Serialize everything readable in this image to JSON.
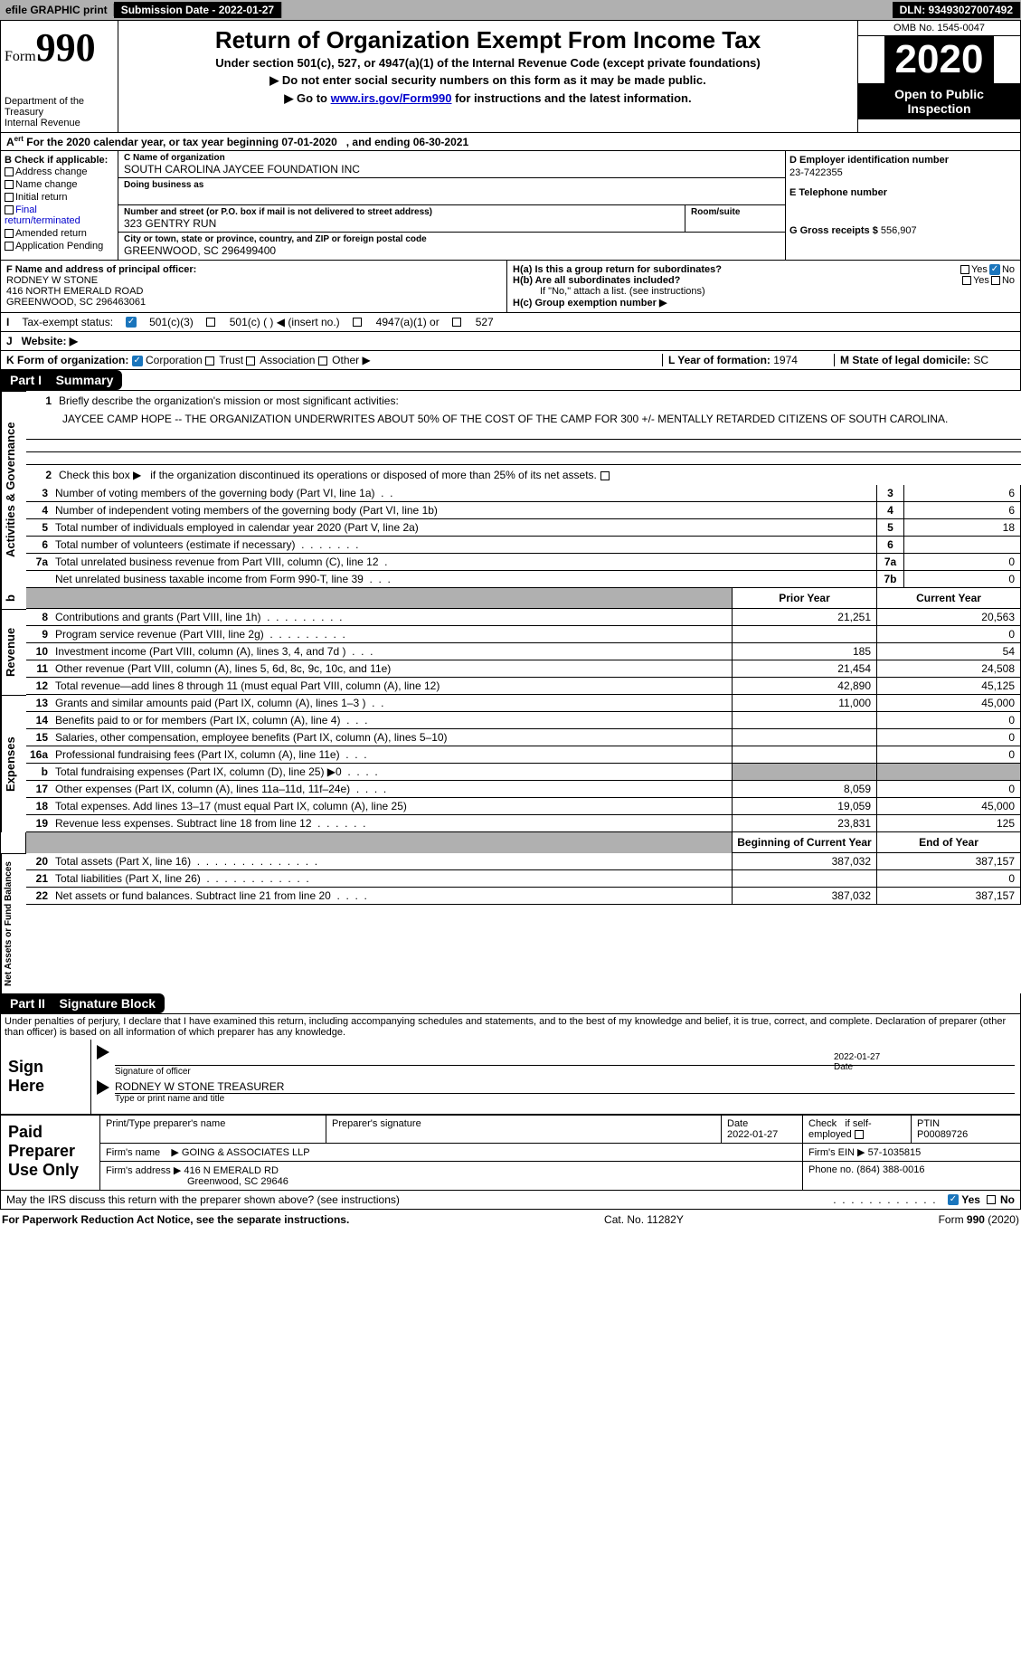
{
  "topbar": {
    "efile": "efile GRAPHIC print",
    "btn1": "Submission Date - 2022-01-27",
    "dln": "DLN: 93493027007492"
  },
  "header": {
    "form_label": "Form",
    "form_num": "990",
    "dept": "Department of the Treasury",
    "irs": "Internal Revenue",
    "title": "Return of Organization Exempt From Income Tax",
    "sub1": "Under section 501(c), 527, or 4947(a)(1) of the Internal Revenue Code (except private foundations)",
    "sub2_pre": "▶ Do not enter social security numbers on this form as it may be made public.",
    "sub3_pre": "▶ Go to ",
    "sub3_link": "www.irs.gov/Form990",
    "sub3_post": " for instructions and the latest information.",
    "omb": "OMB No. 1545-0047",
    "year": "2020",
    "open": "Open to Public Inspection"
  },
  "cal_year": "For the 2020 calendar year, or tax year beginning 07-01-2020   , and ending 06-30-2021",
  "boxB": {
    "label": "B Check if applicable:",
    "opts": [
      "Address change",
      "Name change",
      "Initial return",
      "Final return/terminated",
      "Amended return",
      "Application Pending"
    ]
  },
  "boxC": {
    "label_name": "C Name of organization",
    "org_name": "SOUTH CAROLINA JAYCEE FOUNDATION INC",
    "dba_label": "Doing business as",
    "street_label": "Number and street (or P.O. box if mail is not delivered to street address)",
    "room_label": "Room/suite",
    "street": "323 GENTRY RUN",
    "city_label": "City or town, state or province, country, and ZIP or foreign postal code",
    "city": "GREENWOOD, SC  296499400"
  },
  "boxD": {
    "label": "D Employer identification number",
    "ein": "23-7422355"
  },
  "boxE": {
    "label": "E Telephone number"
  },
  "boxG": {
    "label": "G Gross receipts $ ",
    "val": "556,907"
  },
  "boxF": {
    "label": "F Name and address of principal officer:",
    "name": "RODNEY W STONE",
    "addr1": "416 NORTH EMERALD ROAD",
    "addr2": "GREENWOOD, SC  296463061"
  },
  "boxH": {
    "a": "H(a) Is this a group return for subordinates?",
    "b": "H(b) Are all subordinates included?",
    "c_note": "If \"No,\" attach a list. (see instructions)",
    "c": "H(c) Group exemption number ▶"
  },
  "boxI": {
    "label": "Tax-exempt status:",
    "opts": [
      "501(c)(3)",
      "501(c) (  ) ◀ (insert no.)",
      "4947(a)(1) or",
      "527"
    ]
  },
  "boxJ": {
    "label": "J   Website: ▶"
  },
  "boxK": {
    "label": "K Form of organization:",
    "opts": [
      "Corporation",
      "Trust",
      "Association",
      "Other ▶"
    ]
  },
  "boxL": {
    "label": "L Year of formation: ",
    "val": "1974"
  },
  "boxM": {
    "label": "M State of legal domicile: ",
    "val": "SC"
  },
  "part1": {
    "header": "Part I    Summary",
    "line1_label": "Briefly describe the organization's mission or most significant activities:",
    "mission": "JAYCEE CAMP HOPE -- THE ORGANIZATION UNDERWRITES ABOUT 50% OF THE COST OF THE CAMP FOR 300 +/- MENTALLY RETARDED CITIZENS OF SOUTH CAROLINA.",
    "line2": "Check this box ▶   if the organization discontinued its operations or disposed of more than 25% of its net assets.",
    "rows_gov": [
      {
        "n": "3",
        "d": "Number of voting members of the governing body (Part VI, line 1a)",
        "box": "3",
        "v": "6"
      },
      {
        "n": "4",
        "d": "Number of independent voting members of the governing body (Part VI, line 1b)",
        "box": "4",
        "v": "6"
      },
      {
        "n": "5",
        "d": "Total number of individuals employed in calendar year 2020 (Part V, line 2a)",
        "box": "5",
        "v": "18"
      },
      {
        "n": "6",
        "d": "Total number of volunteers (estimate if necessary)",
        "box": "6",
        "v": ""
      },
      {
        "n": "7a",
        "d": "Total unrelated business revenue from Part VIII, column (C), line 12",
        "box": "7a",
        "v": "0"
      },
      {
        "n": "",
        "d": "Net unrelated business taxable income from Form 990-T, line 39",
        "box": "7b",
        "v": "0"
      }
    ],
    "prior_year": "Prior Year",
    "cur_year": "Current Year",
    "revenue_rows": [
      {
        "n": "8",
        "d": "Contributions and grants (Part VIII, line 1h)",
        "py": "21,251",
        "cy": "20,563"
      },
      {
        "n": "9",
        "d": "Program service revenue (Part VIII, line 2g)",
        "py": "",
        "cy": "0"
      },
      {
        "n": "10",
        "d": "Investment income (Part VIII, column (A), lines 3, 4, and 7d )",
        "py": "185",
        "cy": "54"
      },
      {
        "n": "11",
        "d": "Other revenue (Part VIII, column (A), lines 5, 6d, 8c, 9c, 10c, and 11e)",
        "py": "21,454",
        "cy": "24,508"
      },
      {
        "n": "12",
        "d": "Total revenue—add lines 8 through 11 (must equal Part VIII, column (A), line 12)",
        "py": "42,890",
        "cy": "45,125"
      }
    ],
    "expense_rows": [
      {
        "n": "13",
        "d": "Grants and similar amounts paid (Part IX, column (A), lines 1–3 )",
        "py": "11,000",
        "cy": "45,000"
      },
      {
        "n": "14",
        "d": "Benefits paid to or for members (Part IX, column (A), line 4)",
        "py": "",
        "cy": "0"
      },
      {
        "n": "15",
        "d": "Salaries, other compensation, employee benefits (Part IX, column (A), lines 5–10)",
        "py": "",
        "cy": "0"
      },
      {
        "n": "16a",
        "d": "Professional fundraising fees (Part IX, column (A), line 11e)",
        "py": "",
        "cy": "0"
      },
      {
        "n": "b",
        "d": "Total fundraising expenses (Part IX, column (D), line 25) ▶0",
        "py": "SHADE",
        "cy": "SHADE"
      },
      {
        "n": "17",
        "d": "Other expenses (Part IX, column (A), lines 11a–11d, 11f–24e)",
        "py": "8,059",
        "cy": "0"
      },
      {
        "n": "18",
        "d": "Total expenses. Add lines 13–17 (must equal Part IX, column (A), line 25)",
        "py": "19,059",
        "cy": "45,000"
      },
      {
        "n": "19",
        "d": "Revenue less expenses. Subtract line 18 from line 12",
        "py": "23,831",
        "cy": "125"
      }
    ],
    "boy": "Beginning of Current Year",
    "eoy": "End of Year",
    "net_rows": [
      {
        "n": "20",
        "d": "Total assets (Part X, line 16)",
        "py": "387,032",
        "cy": "387,157"
      },
      {
        "n": "21",
        "d": "Total liabilities (Part X, line 26)",
        "py": "",
        "cy": "0"
      },
      {
        "n": "22",
        "d": "Net assets or fund balances. Subtract line 21 from line 20",
        "py": "387,032",
        "cy": "387,157"
      }
    ]
  },
  "part2": {
    "header": "Part II    Signature Block",
    "decl": "Under penalties of perjury, I declare that I have examined this return, including accompanying schedules and statements, and to the best of my knowledge and belief, it is true, correct, and complete. Declaration of preparer (other than officer) is based on all information of which preparer has any knowledge.",
    "sign_here": "Sign Here",
    "sig_officer": "Signature of officer",
    "sig_date": "2022-01-27",
    "date_label": "Date",
    "officer_name": "RODNEY W STONE  TREASURER",
    "officer_label": "Type or print name and title",
    "paid": "Paid Preparer Use Only",
    "prep_name_label": "Print/Type preparer's name",
    "prep_sig_label": "Preparer's signature",
    "prep_date": "2022-01-27",
    "check_self": "Check   if self-employed",
    "ptin_label": "PTIN",
    "ptin": "P00089726",
    "firm_name_label": "Firm's name    ▶",
    "firm_name": "GOING & ASSOCIATES LLP",
    "firm_ein_label": "Firm's EIN ▶",
    "firm_ein": "57-1035815",
    "firm_addr_label": "Firm's address ▶",
    "firm_addr1": "416 N EMERALD RD",
    "firm_addr2": "Greenwood, SC  29646",
    "phone_label": "Phone no.",
    "phone": "(864) 388-0016",
    "may_discuss": "May the IRS discuss this return with the preparer shown above? (see instructions)"
  },
  "footer": {
    "pra": "For Paperwork Reduction Act Notice, see the separate instructions.",
    "cat": "Cat. No. 11282Y",
    "form": "Form 990 (2020)"
  },
  "labels": {
    "yes": "Yes",
    "no": "No",
    "A": "A",
    "I": "I"
  }
}
